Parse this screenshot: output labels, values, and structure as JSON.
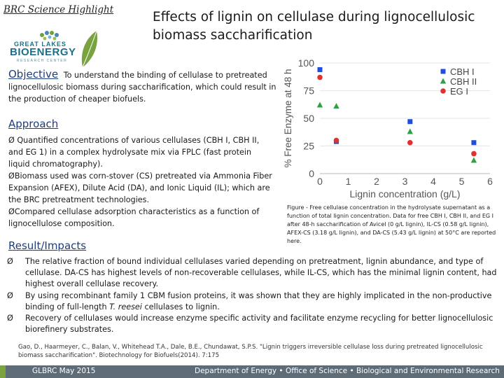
{
  "header": {
    "tagline": "BRC Science Highlight",
    "title": "Effects of lignin on cellulase during lignocellulosic biomass saccharification"
  },
  "logo": {
    "line1": "GREAT LAKES",
    "line2": "BIOENERGY",
    "line3": "RESEARCH CENTER"
  },
  "objective": {
    "heading": "Objective",
    "text": "To understand the binding of cellulase to pretreated lignocellulosic biomass during saccharification, which could result in the production of cheaper biofuels."
  },
  "approach": {
    "heading": "Approach",
    "bullets": [
      "Quantified concentrations of various cellulases (CBH I, CBH II, and EG 1) in a complex hydrolysate mix via FPLC (fast protein liquid chromatography).",
      "Biomass used was corn-stover (CS) pretreated via Ammonia Fiber Expansion (AFEX), Dilute Acid (DA), and Ionic Liquid (IL); which are the BRC pretreatment technologies.",
      "Compared cellulase adsorption characteristics as a function of lignocellulose composition."
    ]
  },
  "result": {
    "heading": "Result/Impacts",
    "bullets": [
      {
        "pre": "The relative fraction of bound individual cellulases varied depending on pretreatment, lignin abundance, and type of cellulase.  DA-CS has highest levels of non-recoverable cellulases, while IL-CS, which has the minimal lignin content, had highest overall cellulase recovery.",
        "italic": "",
        "post": ""
      },
      {
        "pre": "By using recombinant family 1 CBM fusion proteins, it was shown that they are highly implicated in the non-productive binding of full-length ",
        "italic": "T. reesei",
        "post": " cellulases to lignin."
      },
      {
        "pre": "Recovery of cellulases would increase enzyme specific activity and facilitate enzyme recycling for better lignocellulosic biorefinery substrates.",
        "italic": "",
        "post": ""
      }
    ]
  },
  "figure_caption": "Figure - Free cellulase concentration in the hydrolysate supernatant as a function of total lignin concentration. Data for free CBH I, CBH II, and EG I after 48-h saccharification of Avicel (0 g/L lignin), IL-CS (0.58 g/L lignin), AFEX-CS (3.18 g/L lignin), and DA-CS (5.43 g/L lignin) at 50°C are reported here.",
  "citation": "Gao, D., Haarmeyer, C., Balan, V., Whitehead T.A., Dale, B.E., Chundawat, S.P.S. \"Lignin triggers irreversible cellulase loss during pretreated lignocellulosic biomass saccharification\". Biotechnology for Biofuels(2014). 7:175",
  "footer": {
    "left": "GLBRC May 2015",
    "right": "Department of Energy • Office of Science • Biological and Environmental Research"
  },
  "colors": {
    "cbh1": "#1f4fd8",
    "cbh2": "#2ea043",
    "eg1": "#e03030",
    "heading": "#1f3d7a",
    "footer": "#5e6c78"
  },
  "chart_data": {
    "type": "scatter",
    "xlabel": "Lignin concentration (g/L)",
    "ylabel": "% Free Enzyme at 48 h",
    "xlim": [
      0,
      6
    ],
    "ylim": [
      0,
      100
    ],
    "xticks": [
      0,
      1,
      2,
      3,
      4,
      5,
      6
    ],
    "yticks": [
      0,
      25,
      50,
      75,
      100
    ],
    "legend_position": "top-right",
    "series": [
      {
        "name": "CBH I",
        "marker": "square",
        "x": [
          0,
          0.58,
          3.18,
          5.43
        ],
        "y": [
          94,
          29,
          47,
          28
        ]
      },
      {
        "name": "CBH II",
        "marker": "triangle",
        "x": [
          0,
          0.58,
          3.18,
          5.43
        ],
        "y": [
          62,
          61,
          38,
          12
        ]
      },
      {
        "name": "EG I",
        "marker": "circle",
        "x": [
          0,
          0.58,
          3.18,
          5.43
        ],
        "y": [
          87,
          30,
          28,
          18
        ]
      }
    ]
  }
}
